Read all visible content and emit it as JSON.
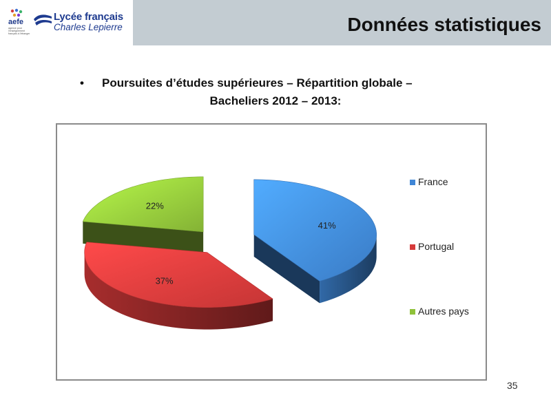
{
  "header": {
    "aefe_logo_text": "aefe",
    "aefe_logo_subtext": "agence pour l'enseignement français à l'étranger",
    "school_line1": "Lycée français",
    "school_line2": "Charles Lepierre",
    "slide_title": "Données statistiques"
  },
  "bullet": {
    "symbol": "•",
    "line1": "Poursuites d’études supérieures – Répartition globale –",
    "line2": "Bacheliers 2012 – 2013:"
  },
  "chart_data": {
    "type": "pie",
    "categories": [
      "France",
      "Portugal",
      "Autres pays"
    ],
    "values": [
      41,
      37,
      22
    ],
    "labels": [
      "41%",
      "37%",
      "22%"
    ],
    "colors": [
      "#3f86d6",
      "#d63a3a",
      "#8fc23a"
    ],
    "legend_position": "right",
    "exploded": true,
    "three_d": true
  },
  "footer": {
    "page_number": "35"
  }
}
